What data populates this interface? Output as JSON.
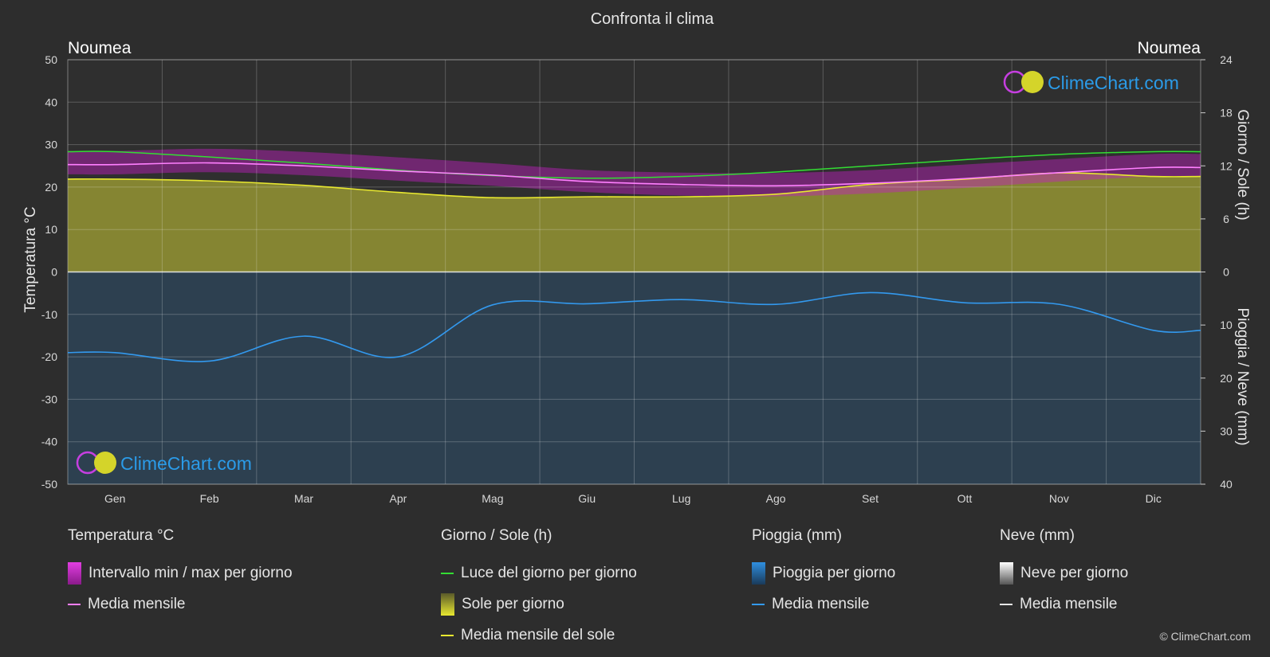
{
  "chart_data": {
    "type": "line",
    "title": "Confronta il clima",
    "location_left": "Noumea",
    "location_right": "Noumea",
    "ylabel_left": "Temperatura °C",
    "ylabel_right_top": "Giorno / Sole (h)",
    "ylabel_right_bottom": "Pioggia / Neve (mm)",
    "ylim_temp": [
      -50,
      50
    ],
    "yticks_temp": [
      "50",
      "40",
      "30",
      "20",
      "10",
      "0",
      "-10",
      "-20",
      "-30",
      "-40",
      "-50"
    ],
    "yticks_hours": [
      "24",
      "18",
      "12",
      "6",
      "0"
    ],
    "yticks_precip": [
      "10",
      "20",
      "30",
      "40"
    ],
    "hours_range": [
      0,
      24
    ],
    "precip_range": [
      0,
      40
    ],
    "categories": [
      "Gen",
      "Feb",
      "Mar",
      "Apr",
      "Mag",
      "Giu",
      "Lug",
      "Ago",
      "Set",
      "Ott",
      "Nov",
      "Dic"
    ],
    "series": [
      {
        "name": "Media mensile",
        "unit": "°C",
        "color": "#ff7fff",
        "values": [
          25.3,
          25.7,
          25.0,
          23.8,
          22.8,
          21.3,
          20.6,
          20.3,
          20.9,
          22.0,
          23.4,
          24.6
        ]
      },
      {
        "name": "Luce del giorno per giorno",
        "unit": "h",
        "color": "#33dd33",
        "values": [
          13.6,
          13.0,
          12.3,
          11.5,
          10.9,
          10.6,
          10.8,
          11.3,
          12.0,
          12.7,
          13.3,
          13.6
        ]
      },
      {
        "name": "Media mensile del sole",
        "unit": "h",
        "color": "#e8e830",
        "values": [
          10.5,
          10.3,
          9.8,
          9.0,
          8.4,
          8.5,
          8.5,
          8.8,
          9.9,
          10.5,
          11.2,
          10.8
        ]
      },
      {
        "name": "Media mensile",
        "unit": "mm",
        "color": "#3399ee",
        "values": [
          15.2,
          16.8,
          12.1,
          16.0,
          6.2,
          6.0,
          5.2,
          6.1,
          3.9,
          5.8,
          6.1,
          11.0
        ]
      }
    ],
    "temp_min": [
      23.0,
      23.5,
      22.8,
      21.5,
      20.3,
      18.8,
      18.0,
      17.8,
      18.5,
      19.8,
      21.3,
      22.5
    ],
    "temp_max": [
      28.5,
      29.0,
      28.3,
      27.0,
      25.6,
      24.0,
      23.4,
      23.3,
      24.0,
      25.3,
      26.6,
      27.8
    ],
    "grid": true,
    "legend_position": "bottom"
  },
  "legend": {
    "temp": {
      "title": "Temperatura °C",
      "items": [
        "Intervallo min / max per giorno",
        "Media mensile"
      ]
    },
    "sun": {
      "title": "Giorno / Sole (h)",
      "items": [
        "Luce del giorno per giorno",
        "Sole per giorno",
        "Media mensile del sole"
      ]
    },
    "rain": {
      "title": "Pioggia (mm)",
      "items": [
        "Pioggia per giorno",
        "Media mensile"
      ]
    },
    "snow": {
      "title": "Neve (mm)",
      "items": [
        "Neve per giorno",
        "Media mensile"
      ]
    }
  },
  "logo_text": "ClimeChart.com",
  "copyright": "© ClimeChart.com",
  "colors": {
    "background": "#2d2d2d",
    "temp_range": "#c21fc2",
    "sun_fill": "#a6a633",
    "rain_fill": "#2a6fa8",
    "logo_text": "#2b9be8"
  }
}
